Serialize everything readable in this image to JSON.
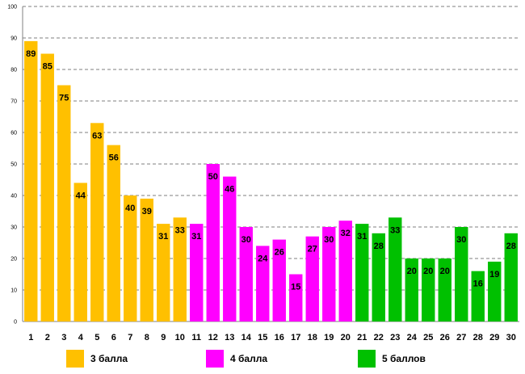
{
  "chart_data": {
    "type": "bar",
    "title": "",
    "xlabel": "",
    "ylabel": "",
    "ylim": [
      0,
      100
    ],
    "yticks": [
      0,
      10,
      20,
      30,
      40,
      50,
      60,
      70,
      80,
      90,
      100
    ],
    "grid": true,
    "categories": [
      "1",
      "2",
      "3",
      "4",
      "5",
      "6",
      "7",
      "8",
      "9",
      "10",
      "11",
      "12",
      "13",
      "14",
      "15",
      "16",
      "17",
      "18",
      "19",
      "20",
      "21",
      "22",
      "23",
      "24",
      "25",
      "26",
      "27",
      "28",
      "29",
      "30"
    ],
    "values": [
      89,
      85,
      75,
      44,
      63,
      56,
      40,
      39,
      31,
      33,
      31,
      50,
      46,
      30,
      24,
      26,
      15,
      27,
      30,
      32,
      31,
      28,
      33,
      20,
      20,
      20,
      30,
      16,
      19,
      28
    ],
    "groups": [
      {
        "name": "3 балла",
        "color": "#FFC000",
        "start": 0,
        "end": 9
      },
      {
        "name": "4 балла",
        "color": "#FF00FF",
        "start": 10,
        "end": 19
      },
      {
        "name": "5 баллов",
        "color": "#00C000",
        "start": 20,
        "end": 29
      }
    ],
    "legend_position": "bottom"
  }
}
